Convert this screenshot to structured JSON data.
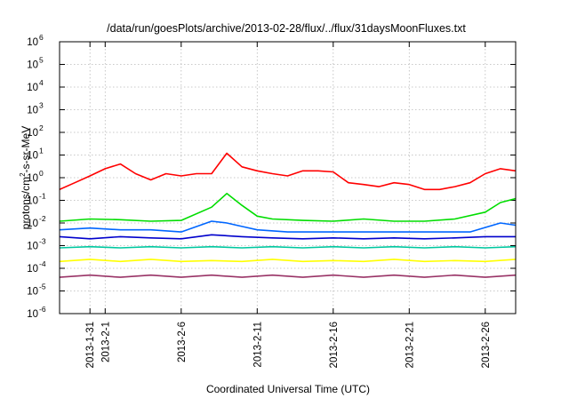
{
  "chart_data": {
    "type": "line",
    "title": "/data/run/goesPlots/archive/2013-02-28/flux/../flux/31daysMoonFluxes.txt",
    "xlabel": "Coordinated Universal Time (UTC)",
    "ylabel": "protons/cm2-s-sr-MeV",
    "ylabel_parts": [
      "protons/cm",
      "2",
      "-s-sr-MeV"
    ],
    "y_scale": "log",
    "ylim": [
      1e-06,
      1000000.0
    ],
    "y_ticks": [
      {
        "exp": "-6",
        "value": 1e-06
      },
      {
        "exp": "-5",
        "value": 1e-05
      },
      {
        "exp": "-4",
        "value": 0.0001
      },
      {
        "exp": "-3",
        "value": 0.001
      },
      {
        "exp": "-2",
        "value": 0.01
      },
      {
        "exp": "-1",
        "value": 0.1
      },
      {
        "exp": "0",
        "value": 1
      },
      {
        "exp": "1",
        "value": 10
      },
      {
        "exp": "2",
        "value": 100
      },
      {
        "exp": "3",
        "value": 1000
      },
      {
        "exp": "4",
        "value": 10000
      },
      {
        "exp": "5",
        "value": 100000
      },
      {
        "exp": "6",
        "value": 1000000
      }
    ],
    "y_tick_base": "10",
    "xlim": [
      "2013-01-29",
      "2013-02-28"
    ],
    "x_ticks": [
      "2013-1-31",
      "2013-2-1",
      "2013-2-6",
      "2013-2-11",
      "2013-2-16",
      "2013-2-21",
      "2013-2-26"
    ],
    "x_tick_dates": [
      "2013-01-31",
      "2013-02-01",
      "2013-02-06",
      "2013-02-11",
      "2013-02-16",
      "2013-02-21",
      "2013-02-26"
    ],
    "grid": true,
    "legend": "none",
    "series": [
      {
        "color": "#ff0000",
        "x": [
          "2013-01-29",
          "2013-01-30",
          "2013-01-31",
          "2013-02-01",
          "2013-02-02",
          "2013-02-03",
          "2013-02-04",
          "2013-02-05",
          "2013-02-06",
          "2013-02-07",
          "2013-02-08",
          "2013-02-09",
          "2013-02-10",
          "2013-02-11",
          "2013-02-12",
          "2013-02-13",
          "2013-02-14",
          "2013-02-15",
          "2013-02-16",
          "2013-02-17",
          "2013-02-18",
          "2013-02-19",
          "2013-02-20",
          "2013-02-21",
          "2013-02-22",
          "2013-02-23",
          "2013-02-24",
          "2013-02-25",
          "2013-02-26",
          "2013-02-27",
          "2013-02-28"
        ],
        "values": [
          0.3,
          0.6,
          1.2,
          2.5,
          4,
          1.5,
          0.8,
          1.5,
          1.2,
          1.5,
          1.5,
          12,
          3,
          2,
          1.5,
          1.2,
          2,
          2,
          1.8,
          0.6,
          0.5,
          0.4,
          0.6,
          0.5,
          0.3,
          0.3,
          0.4,
          0.6,
          1.5,
          2.5,
          2
        ]
      },
      {
        "color": "#00dd00",
        "x": [
          "2013-01-29",
          "2013-01-31",
          "2013-02-02",
          "2013-02-04",
          "2013-02-06",
          "2013-02-08",
          "2013-02-09",
          "2013-02-10",
          "2013-02-11",
          "2013-02-12",
          "2013-02-14",
          "2013-02-16",
          "2013-02-18",
          "2013-02-20",
          "2013-02-22",
          "2013-02-24",
          "2013-02-26",
          "2013-02-27",
          "2013-02-28"
        ],
        "values": [
          0.012,
          0.015,
          0.014,
          0.012,
          0.013,
          0.05,
          0.2,
          0.06,
          0.02,
          0.015,
          0.013,
          0.012,
          0.015,
          0.012,
          0.012,
          0.015,
          0.03,
          0.08,
          0.12
        ]
      },
      {
        "color": "#0066ff",
        "x": [
          "2013-01-29",
          "2013-01-31",
          "2013-02-02",
          "2013-02-04",
          "2013-02-06",
          "2013-02-08",
          "2013-02-09",
          "2013-02-10",
          "2013-02-11",
          "2013-02-13",
          "2013-02-15",
          "2013-02-17",
          "2013-02-19",
          "2013-02-21",
          "2013-02-23",
          "2013-02-25",
          "2013-02-27",
          "2013-02-28"
        ],
        "values": [
          0.005,
          0.006,
          0.005,
          0.005,
          0.004,
          0.012,
          0.01,
          0.007,
          0.005,
          0.004,
          0.004,
          0.004,
          0.004,
          0.004,
          0.004,
          0.004,
          0.01,
          0.008
        ]
      },
      {
        "color": "#0000cc",
        "x": [
          "2013-01-29",
          "2013-01-31",
          "2013-02-02",
          "2013-02-04",
          "2013-02-06",
          "2013-02-08",
          "2013-02-10",
          "2013-02-12",
          "2013-02-14",
          "2013-02-16",
          "2013-02-18",
          "2013-02-20",
          "2013-02-22",
          "2013-02-24",
          "2013-02-26",
          "2013-02-28"
        ],
        "values": [
          0.0025,
          0.002,
          0.0025,
          0.0022,
          0.002,
          0.003,
          0.0025,
          0.0022,
          0.002,
          0.0022,
          0.002,
          0.0022,
          0.002,
          0.0022,
          0.0025,
          0.0025
        ]
      },
      {
        "color": "#00c8a0",
        "x": [
          "2013-01-29",
          "2013-01-31",
          "2013-02-02",
          "2013-02-04",
          "2013-02-06",
          "2013-02-08",
          "2013-02-10",
          "2013-02-12",
          "2013-02-14",
          "2013-02-16",
          "2013-02-18",
          "2013-02-20",
          "2013-02-22",
          "2013-02-24",
          "2013-02-26",
          "2013-02-28"
        ],
        "values": [
          0.0008,
          0.0009,
          0.0008,
          0.0009,
          0.0008,
          0.0009,
          0.0008,
          0.0009,
          0.0008,
          0.0009,
          0.0008,
          0.0009,
          0.0008,
          0.0009,
          0.0008,
          0.0009
        ]
      },
      {
        "color": "#ffff00",
        "x": [
          "2013-01-29",
          "2013-01-31",
          "2013-02-02",
          "2013-02-04",
          "2013-02-06",
          "2013-02-08",
          "2013-02-10",
          "2013-02-12",
          "2013-02-14",
          "2013-02-16",
          "2013-02-18",
          "2013-02-20",
          "2013-02-22",
          "2013-02-24",
          "2013-02-26",
          "2013-02-28"
        ],
        "values": [
          0.0002,
          0.00025,
          0.0002,
          0.00025,
          0.0002,
          0.00022,
          0.0002,
          0.00025,
          0.0002,
          0.00022,
          0.0002,
          0.00025,
          0.0002,
          0.00022,
          0.0002,
          0.00025
        ]
      },
      {
        "color": "#993366",
        "x": [
          "2013-01-29",
          "2013-01-31",
          "2013-02-02",
          "2013-02-04",
          "2013-02-06",
          "2013-02-08",
          "2013-02-10",
          "2013-02-12",
          "2013-02-14",
          "2013-02-16",
          "2013-02-18",
          "2013-02-20",
          "2013-02-22",
          "2013-02-24",
          "2013-02-26",
          "2013-02-28"
        ],
        "values": [
          4e-05,
          5e-05,
          4e-05,
          5e-05,
          4e-05,
          5e-05,
          4e-05,
          5e-05,
          4e-05,
          5e-05,
          4e-05,
          5e-05,
          4e-05,
          5e-05,
          4e-05,
          5e-05
        ]
      }
    ]
  }
}
